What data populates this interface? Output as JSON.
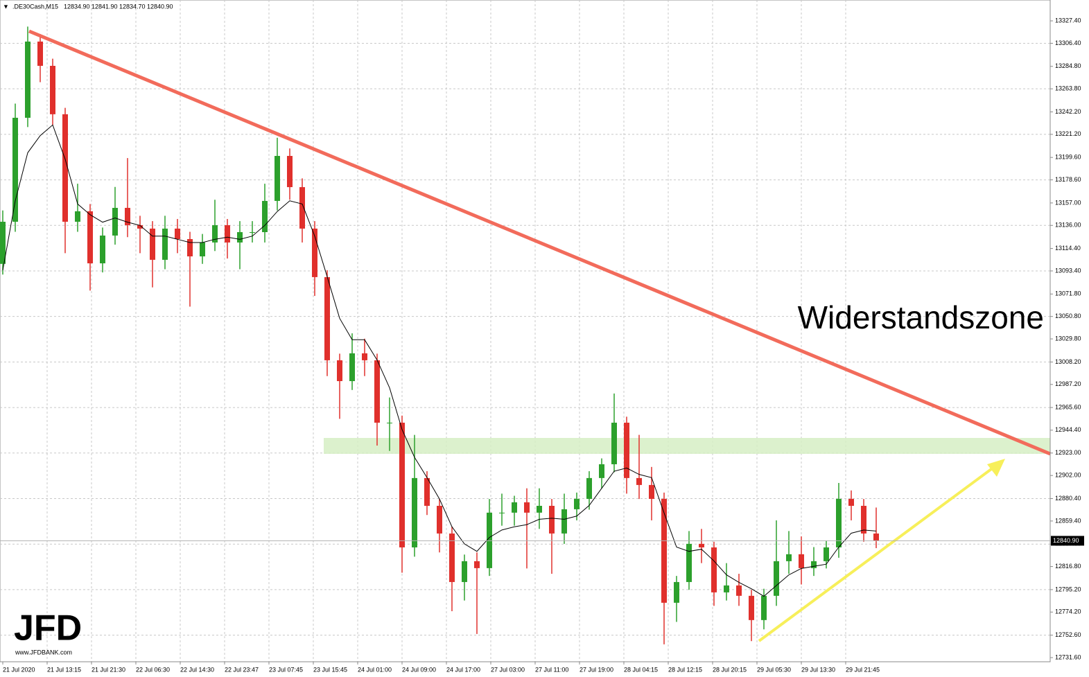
{
  "chart_data": {
    "type": "candlestick",
    "header_symbol": ".DE30Cash,M15",
    "header_ohlc": [
      "12834.90",
      "12841.90",
      "12834.70",
      "12840.90"
    ],
    "annotation": "Widerstandszone",
    "logo": "JFD",
    "logo_url": "www.JFDBANK.com",
    "up_color": "#2ca02c",
    "down_color": "#e0302c",
    "ma_color": "#000000",
    "grid": true,
    "current_price": {
      "value": 12840.9,
      "label": "12840.90"
    },
    "ylim": [
      12727.7,
      13346.9
    ],
    "yticks": [
      {
        "value": 13327.4,
        "label": "13327.40"
      },
      {
        "value": 13306.4,
        "label": "13306.40"
      },
      {
        "value": 13284.8,
        "label": "13284.80"
      },
      {
        "value": 13263.8,
        "label": "13263.80"
      },
      {
        "value": 13242.2,
        "label": "13242.20"
      },
      {
        "value": 13221.2,
        "label": "13221.20"
      },
      {
        "value": 13199.6,
        "label": "13199.60"
      },
      {
        "value": 13178.6,
        "label": "13178.60"
      },
      {
        "value": 13157.0,
        "label": "13157.00"
      },
      {
        "value": 13136.0,
        "label": "13136.00"
      },
      {
        "value": 13114.4,
        "label": "13114.40"
      },
      {
        "value": 13093.4,
        "label": "13093.40"
      },
      {
        "value": 13071.8,
        "label": "13071.80"
      },
      {
        "value": 13050.8,
        "label": "13050.80"
      },
      {
        "value": 13029.8,
        "label": "13029.80"
      },
      {
        "value": 13008.2,
        "label": "13008.20"
      },
      {
        "value": 12987.2,
        "label": "12987.20"
      },
      {
        "value": 12965.6,
        "label": "12965.60"
      },
      {
        "value": 12944.4,
        "label": "12944.40"
      },
      {
        "value": 12923.0,
        "label": "12923.00"
      },
      {
        "value": 12902.0,
        "label": "12902.00"
      },
      {
        "value": 12880.4,
        "label": "12880.40"
      },
      {
        "value": 12859.4,
        "label": "12859.40"
      },
      {
        "value": 12837.8,
        "label": "12837.80"
      },
      {
        "value": 12816.8,
        "label": "12816.80"
      },
      {
        "value": 12795.2,
        "label": "12795.20"
      },
      {
        "value": 12774.2,
        "label": "12774.20"
      },
      {
        "value": 12752.6,
        "label": "12752.60"
      },
      {
        "value": 12731.6,
        "label": "12731.60"
      }
    ],
    "x_tick_labels": [
      "21 Jul 2020",
      "21 Jul 13:15",
      "21 Jul 21:30",
      "22 Jul 06:30",
      "22 Jul 14:30",
      "22 Jul 23:47",
      "23 Jul 07:45",
      "23 Jul 15:45",
      "24 Jul 01:00",
      "24 Jul 09:00",
      "24 Jul 17:00",
      "27 Jul 03:00",
      "27 Jul 11:00",
      "27 Jul 19:00",
      "28 Jul 04:15",
      "28 Jul 12:15",
      "28 Jul 20:15",
      "29 Jul 05:30",
      "29 Jul 13:30",
      "29 Jul 21:45"
    ],
    "open": [
      13100,
      13139.4,
      13236.7,
      13308,
      13285.3,
      13240,
      13139.4,
      13149.2,
      13100.5,
      13126.5,
      13152.4,
      13136.2,
      13133,
      13103.8,
      13133,
      13123.2,
      13107,
      13120,
      13136.2,
      13120,
      13129.7,
      13129.7,
      13158.9,
      13201,
      13171.8,
      13133,
      13087.6,
      13009.8,
      12990.3,
      13016.3,
      13009.8,
      12951.4,
      12951.4,
      12834.7,
      12899.6,
      12873.6,
      12847.7,
      12802.3,
      12821.8,
      12815.3,
      12867.2,
      12867.2,
      12876.9,
      12867.2,
      12873.6,
      12847.7,
      12870.4,
      12880.1,
      12899.6,
      12912.5,
      12951.4,
      12899.6,
      12893.1,
      12880.1,
      12782.9,
      12802.3,
      12838,
      12834.7,
      12792.6,
      12799.1,
      12789.4,
      12766.7,
      12789.4,
      12821.8,
      12828.3,
      12815.3,
      12821.8,
      12834.7,
      12880.1,
      12873.6,
      12847.7
    ],
    "high": [
      13150,
      13250,
      13322,
      13315,
      13292,
      13246,
      13175,
      13156,
      13134,
      13172,
      13199,
      13145,
      13140,
      13145,
      13142,
      13130,
      13128,
      13160,
      13142,
      13140,
      13140,
      13175,
      13218,
      13208,
      13180,
      13140,
      13094,
      13016,
      13035,
      13030,
      13016,
      12975,
      12958,
      12940,
      12906,
      12880,
      12854,
      12828,
      12830,
      12880,
      12885,
      12883,
      12890,
      12890,
      12880,
      12885,
      12886,
      12906,
      12918,
      12978.7,
      12957,
      12940,
      12910,
      12886,
      12808,
      12850,
      12852,
      12840,
      12820,
      12810,
      12795,
      12796,
      12860,
      12850,
      12845,
      12835,
      12841,
      12895,
      12888,
      12880,
      12872
    ],
    "low": [
      13090,
      13130,
      13228,
      13270,
      13230,
      13110,
      13130,
      13075,
      13092,
      13118,
      13125,
      13110,
      13078,
      13095,
      13110,
      13060,
      13100,
      13112,
      13105,
      13095,
      13120,
      13120,
      13150,
      13160,
      13120,
      13070,
      12995,
      12955,
      12982,
      12995,
      12930,
      12925,
      12811,
      12826,
      12865,
      12830,
      12775,
      12785,
      12753.7,
      12808,
      12855,
      12855,
      12815,
      12852,
      12810,
      12838,
      12860,
      12870,
      12890,
      12905,
      12885,
      12880,
      12860,
      12744,
      12765,
      12795,
      12820,
      12780,
      12785,
      12780,
      12747,
      12758,
      12780,
      12810,
      12800,
      12808,
      12815,
      12825,
      12860,
      12840,
      12834
    ],
    "close": [
      13139.4,
      13236.7,
      13308,
      13285.3,
      13240,
      13139.4,
      13149.2,
      13100.5,
      13126.5,
      13152.4,
      13136.2,
      13133,
      13103.8,
      13133,
      13123.2,
      13107,
      13120,
      13136.2,
      13120,
      13129.7,
      13129.7,
      13158.9,
      13201,
      13171.8,
      13133,
      13087.6,
      13009.8,
      12990.3,
      13016.3,
      13009.8,
      12951.4,
      12951.4,
      12834.7,
      12899.6,
      12873.6,
      12847.7,
      12802.3,
      12821.8,
      12815.3,
      12867.2,
      12867.2,
      12876.9,
      12867.2,
      12873.6,
      12847.7,
      12870.4,
      12880.1,
      12899.6,
      12912.5,
      12951.4,
      12899.6,
      12893.1,
      12880.1,
      12782.9,
      12802.3,
      12838,
      12834.7,
      12792.6,
      12799.1,
      12789.4,
      12766.7,
      12789.4,
      12821.8,
      12828.3,
      12815.3,
      12821.8,
      12834.7,
      12880.1,
      12873.6,
      12847.7,
      12840.9
    ],
    "moving_average": [
      13094,
      13159,
      13204,
      13220,
      13230,
      13198,
      13156,
      13146,
      13139,
      13143,
      13139,
      13136,
      13126,
      13126,
      13123,
      13120,
      13120,
      13123,
      13125,
      13123,
      13126,
      13136,
      13149,
      13159,
      13156,
      13126,
      13088,
      13049,
      13029,
      13029,
      13010,
      12984,
      12945,
      12919,
      12900,
      12880,
      12854,
      12838,
      12831,
      12844,
      12851,
      12854,
      12856,
      12861,
      12862,
      12861,
      12864,
      12874,
      12890,
      12906,
      12909,
      12903,
      12900,
      12867,
      12835,
      12831,
      12833,
      12822,
      12809,
      12802,
      12796,
      12789,
      12799,
      12809,
      12815,
      12817,
      12819,
      12835,
      12848,
      12851,
      12850
    ]
  }
}
